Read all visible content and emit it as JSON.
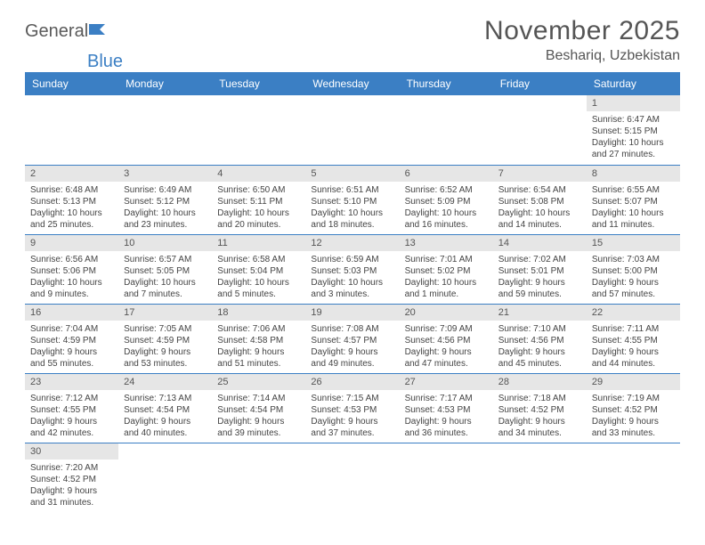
{
  "logo": {
    "text1": "General",
    "text2": "Blue"
  },
  "title": "November 2025",
  "location": "Beshariq, Uzbekistan",
  "colors": {
    "header_bg": "#3b7fc4",
    "header_text": "#ffffff",
    "daynum_bg": "#e6e6e6",
    "text": "#444444",
    "rule": "#3b7fc4"
  },
  "weekdays": [
    "Sunday",
    "Monday",
    "Tuesday",
    "Wednesday",
    "Thursday",
    "Friday",
    "Saturday"
  ],
  "weeks": [
    [
      null,
      null,
      null,
      null,
      null,
      null,
      {
        "n": "1",
        "sunrise": "Sunrise: 6:47 AM",
        "sunset": "Sunset: 5:15 PM",
        "day": "Daylight: 10 hours and 27 minutes."
      }
    ],
    [
      {
        "n": "2",
        "sunrise": "Sunrise: 6:48 AM",
        "sunset": "Sunset: 5:13 PM",
        "day": "Daylight: 10 hours and 25 minutes."
      },
      {
        "n": "3",
        "sunrise": "Sunrise: 6:49 AM",
        "sunset": "Sunset: 5:12 PM",
        "day": "Daylight: 10 hours and 23 minutes."
      },
      {
        "n": "4",
        "sunrise": "Sunrise: 6:50 AM",
        "sunset": "Sunset: 5:11 PM",
        "day": "Daylight: 10 hours and 20 minutes."
      },
      {
        "n": "5",
        "sunrise": "Sunrise: 6:51 AM",
        "sunset": "Sunset: 5:10 PM",
        "day": "Daylight: 10 hours and 18 minutes."
      },
      {
        "n": "6",
        "sunrise": "Sunrise: 6:52 AM",
        "sunset": "Sunset: 5:09 PM",
        "day": "Daylight: 10 hours and 16 minutes."
      },
      {
        "n": "7",
        "sunrise": "Sunrise: 6:54 AM",
        "sunset": "Sunset: 5:08 PM",
        "day": "Daylight: 10 hours and 14 minutes."
      },
      {
        "n": "8",
        "sunrise": "Sunrise: 6:55 AM",
        "sunset": "Sunset: 5:07 PM",
        "day": "Daylight: 10 hours and 11 minutes."
      }
    ],
    [
      {
        "n": "9",
        "sunrise": "Sunrise: 6:56 AM",
        "sunset": "Sunset: 5:06 PM",
        "day": "Daylight: 10 hours and 9 minutes."
      },
      {
        "n": "10",
        "sunrise": "Sunrise: 6:57 AM",
        "sunset": "Sunset: 5:05 PM",
        "day": "Daylight: 10 hours and 7 minutes."
      },
      {
        "n": "11",
        "sunrise": "Sunrise: 6:58 AM",
        "sunset": "Sunset: 5:04 PM",
        "day": "Daylight: 10 hours and 5 minutes."
      },
      {
        "n": "12",
        "sunrise": "Sunrise: 6:59 AM",
        "sunset": "Sunset: 5:03 PM",
        "day": "Daylight: 10 hours and 3 minutes."
      },
      {
        "n": "13",
        "sunrise": "Sunrise: 7:01 AM",
        "sunset": "Sunset: 5:02 PM",
        "day": "Daylight: 10 hours and 1 minute."
      },
      {
        "n": "14",
        "sunrise": "Sunrise: 7:02 AM",
        "sunset": "Sunset: 5:01 PM",
        "day": "Daylight: 9 hours and 59 minutes."
      },
      {
        "n": "15",
        "sunrise": "Sunrise: 7:03 AM",
        "sunset": "Sunset: 5:00 PM",
        "day": "Daylight: 9 hours and 57 minutes."
      }
    ],
    [
      {
        "n": "16",
        "sunrise": "Sunrise: 7:04 AM",
        "sunset": "Sunset: 4:59 PM",
        "day": "Daylight: 9 hours and 55 minutes."
      },
      {
        "n": "17",
        "sunrise": "Sunrise: 7:05 AM",
        "sunset": "Sunset: 4:59 PM",
        "day": "Daylight: 9 hours and 53 minutes."
      },
      {
        "n": "18",
        "sunrise": "Sunrise: 7:06 AM",
        "sunset": "Sunset: 4:58 PM",
        "day": "Daylight: 9 hours and 51 minutes."
      },
      {
        "n": "19",
        "sunrise": "Sunrise: 7:08 AM",
        "sunset": "Sunset: 4:57 PM",
        "day": "Daylight: 9 hours and 49 minutes."
      },
      {
        "n": "20",
        "sunrise": "Sunrise: 7:09 AM",
        "sunset": "Sunset: 4:56 PM",
        "day": "Daylight: 9 hours and 47 minutes."
      },
      {
        "n": "21",
        "sunrise": "Sunrise: 7:10 AM",
        "sunset": "Sunset: 4:56 PM",
        "day": "Daylight: 9 hours and 45 minutes."
      },
      {
        "n": "22",
        "sunrise": "Sunrise: 7:11 AM",
        "sunset": "Sunset: 4:55 PM",
        "day": "Daylight: 9 hours and 44 minutes."
      }
    ],
    [
      {
        "n": "23",
        "sunrise": "Sunrise: 7:12 AM",
        "sunset": "Sunset: 4:55 PM",
        "day": "Daylight: 9 hours and 42 minutes."
      },
      {
        "n": "24",
        "sunrise": "Sunrise: 7:13 AM",
        "sunset": "Sunset: 4:54 PM",
        "day": "Daylight: 9 hours and 40 minutes."
      },
      {
        "n": "25",
        "sunrise": "Sunrise: 7:14 AM",
        "sunset": "Sunset: 4:54 PM",
        "day": "Daylight: 9 hours and 39 minutes."
      },
      {
        "n": "26",
        "sunrise": "Sunrise: 7:15 AM",
        "sunset": "Sunset: 4:53 PM",
        "day": "Daylight: 9 hours and 37 minutes."
      },
      {
        "n": "27",
        "sunrise": "Sunrise: 7:17 AM",
        "sunset": "Sunset: 4:53 PM",
        "day": "Daylight: 9 hours and 36 minutes."
      },
      {
        "n": "28",
        "sunrise": "Sunrise: 7:18 AM",
        "sunset": "Sunset: 4:52 PM",
        "day": "Daylight: 9 hours and 34 minutes."
      },
      {
        "n": "29",
        "sunrise": "Sunrise: 7:19 AM",
        "sunset": "Sunset: 4:52 PM",
        "day": "Daylight: 9 hours and 33 minutes."
      }
    ],
    [
      {
        "n": "30",
        "sunrise": "Sunrise: 7:20 AM",
        "sunset": "Sunset: 4:52 PM",
        "day": "Daylight: 9 hours and 31 minutes."
      },
      null,
      null,
      null,
      null,
      null,
      null
    ]
  ]
}
